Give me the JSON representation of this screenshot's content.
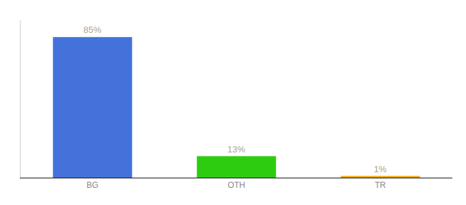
{
  "chart_data": {
    "type": "bar",
    "categories": [
      "BG",
      "OTH",
      "TR"
    ],
    "values": [
      85,
      13,
      1
    ],
    "value_labels": [
      "85%",
      "13%",
      "1%"
    ],
    "colors": [
      "#4472db",
      "#2ecc11",
      "#f0a500"
    ],
    "ylim": [
      0,
      95
    ],
    "data_labels": true,
    "tick_labels": "x",
    "grid": false
  }
}
